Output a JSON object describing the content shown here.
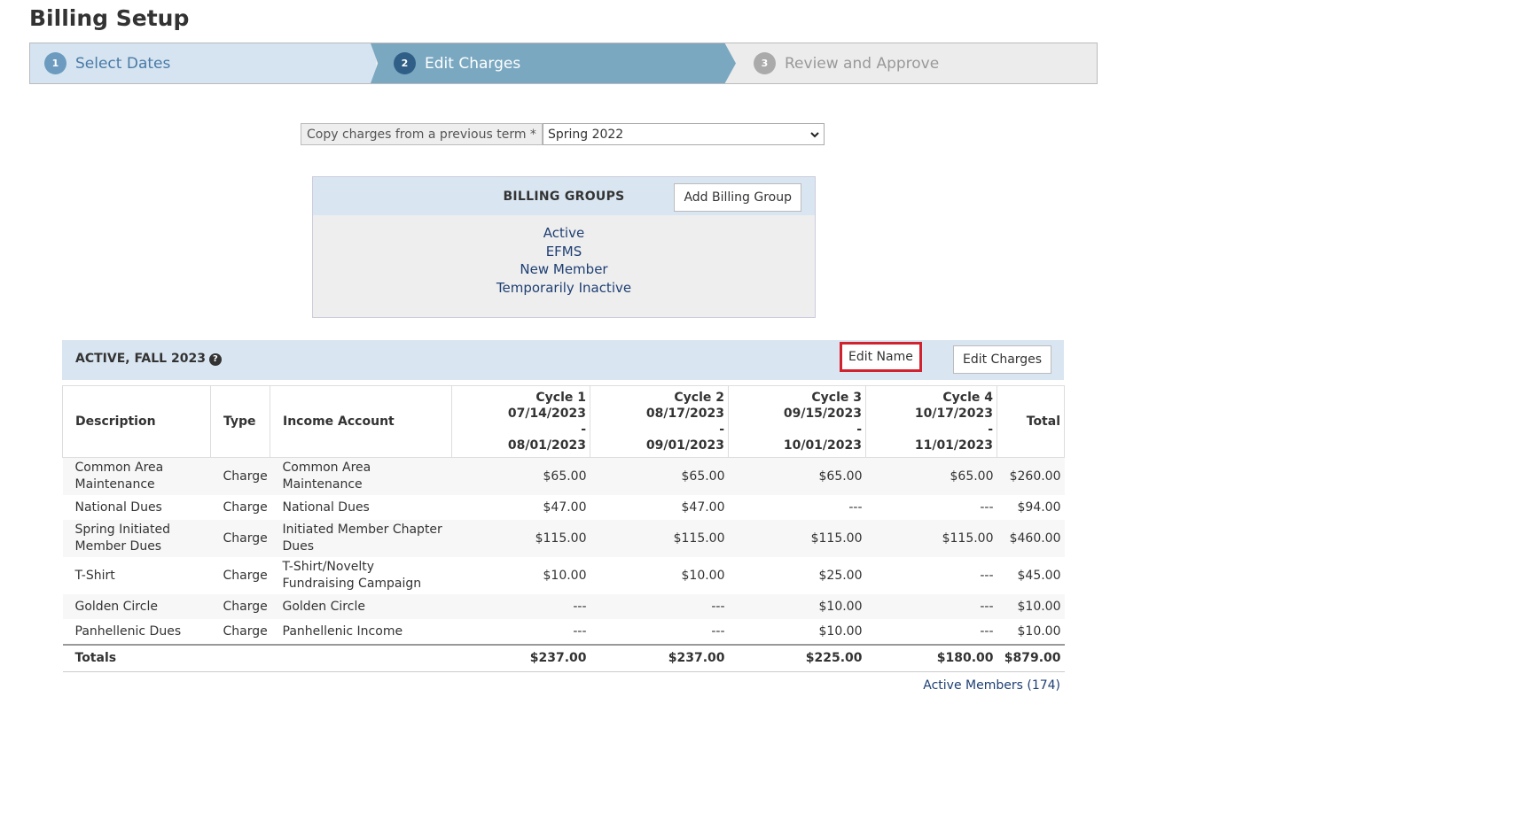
{
  "header": {
    "title": "Billing Setup"
  },
  "steps": [
    {
      "number": "1",
      "label": "Select Dates"
    },
    {
      "number": "2",
      "label": "Edit Charges"
    },
    {
      "number": "3",
      "label": "Review and Approve"
    }
  ],
  "copy_term": {
    "label": "Copy charges from a previous term *",
    "value": "Spring 2022"
  },
  "billing_groups": {
    "title": "BILLING GROUPS",
    "button": "Add Billing Group",
    "items": [
      "Active",
      "EFMS",
      "New Member",
      "Temporarily Inactive"
    ]
  },
  "group": {
    "title": "ACTIVE, FALL 2023",
    "buttons": [
      "Edit Name",
      "Edit Charges"
    ],
    "table": {
      "columns": [
        {
          "title": "Description"
        },
        {
          "title": "Type"
        },
        {
          "title": "Income Account"
        },
        {
          "title": "Cycle 1",
          "range": "07/14/2023 - 08/01/2023"
        },
        {
          "title": "Cycle 2",
          "range": "08/17/2023 - 09/01/2023"
        },
        {
          "title": "Cycle 3",
          "range": "09/15/2023 - 10/01/2023"
        },
        {
          "title": "Cycle 4",
          "range": "10/17/2023 - 11/01/2023"
        },
        {
          "title": "Total"
        }
      ],
      "rows": [
        [
          "Common Area Maintenance",
          "Charge",
          "Common Area Maintenance",
          "$65.00",
          "$65.00",
          "$65.00",
          "$65.00",
          "$260.00"
        ],
        [
          "National Dues",
          "Charge",
          "National Dues",
          "$47.00",
          "$47.00",
          "---",
          "---",
          "$94.00"
        ],
        [
          "Spring Initiated Member Dues",
          "Charge",
          "Initiated Member Chapter Dues",
          "$115.00",
          "$115.00",
          "$115.00",
          "$115.00",
          "$460.00"
        ],
        [
          "T-Shirt",
          "Charge",
          "T-Shirt/Novelty Fundraising Campaign",
          "$10.00",
          "$10.00",
          "$25.00",
          "---",
          "$45.00"
        ],
        [
          "Golden Circle",
          "Charge",
          "Golden Circle",
          "---",
          "---",
          "$10.00",
          "---",
          "$10.00"
        ],
        [
          "Panhellenic Dues",
          "Charge",
          "Panhellenic Income",
          "---",
          "---",
          "$10.00",
          "---",
          "$10.00"
        ]
      ],
      "totals": [
        "Totals",
        "",
        "",
        "$237.00",
        "$237.00",
        "$225.00",
        "$180.00",
        "$879.00"
      ]
    },
    "link": "Active Members (174)"
  }
}
